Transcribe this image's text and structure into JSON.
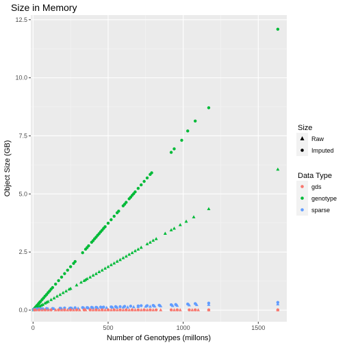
{
  "chart_data": {
    "type": "scatter",
    "title": "Size in Memory",
    "xlabel": "Number of Genotypes (millons)",
    "ylabel": "Object Size (GB)",
    "xlim": [
      -15,
      1690
    ],
    "ylim": [
      -0.5,
      12.7
    ],
    "x_ticks": [
      0,
      500,
      1000,
      1500
    ],
    "x_tick_labels": [
      "0",
      "500",
      "1000",
      "1500"
    ],
    "y_ticks": [
      0,
      2.5,
      5,
      7.5,
      10,
      12.5
    ],
    "y_tick_labels": [
      "0.0",
      "2.5",
      "5.0",
      "7.5",
      "10.0",
      "12.5"
    ],
    "grid": true,
    "legends": [
      {
        "title": "Size",
        "entries": [
          {
            "label": "Raw",
            "shape": "triangle"
          },
          {
            "label": "Imputed",
            "shape": "circle"
          }
        ]
      },
      {
        "title": "Data Type",
        "entries": [
          {
            "label": "gds",
            "color": "#F8766D"
          },
          {
            "label": "genotype",
            "color": "#00BA38"
          },
          {
            "label": "sparse",
            "color": "#619CFF"
          }
        ]
      }
    ],
    "series": [
      {
        "name": "genotype",
        "size": "Imputed",
        "color": "#00BA38",
        "x": [
          2,
          5,
          8,
          12,
          16,
          20,
          25,
          30,
          35,
          40,
          45,
          50,
          60,
          70,
          80,
          90,
          100,
          110,
          120,
          130,
          150,
          170,
          190,
          210,
          230,
          250,
          270,
          280,
          330,
          350,
          360,
          370,
          390,
          400,
          410,
          420,
          430,
          440,
          450,
          460,
          470,
          480,
          500,
          520,
          540,
          560,
          570,
          600,
          610,
          620,
          640,
          650,
          660,
          670,
          680,
          700,
          720,
          740,
          760,
          780,
          790,
          920,
          940,
          990,
          1030,
          1080,
          1170,
          1630
        ],
        "y": [
          0.02,
          0.04,
          0.06,
          0.09,
          0.12,
          0.15,
          0.19,
          0.22,
          0.26,
          0.3,
          0.34,
          0.37,
          0.45,
          0.52,
          0.6,
          0.67,
          0.75,
          0.82,
          0.9,
          0.97,
          1.12,
          1.27,
          1.42,
          1.57,
          1.72,
          1.87,
          2.01,
          2.09,
          2.47,
          2.62,
          2.69,
          2.77,
          2.92,
          2.99,
          3.07,
          3.14,
          3.22,
          3.29,
          3.37,
          3.44,
          3.52,
          3.59,
          3.74,
          3.89,
          4.04,
          4.19,
          4.26,
          4.49,
          4.56,
          4.64,
          4.79,
          4.86,
          4.94,
          5.01,
          5.09,
          5.24,
          5.39,
          5.54,
          5.69,
          5.84,
          5.91,
          6.79,
          6.94,
          7.31,
          7.71,
          8.14,
          8.71,
          12.09
        ]
      },
      {
        "name": "genotype",
        "size": "Raw",
        "color": "#00BA38",
        "x": [
          3,
          8,
          14,
          20,
          27,
          35,
          45,
          55,
          65,
          80,
          90,
          100,
          120,
          140,
          160,
          180,
          200,
          220,
          240,
          250,
          290,
          320,
          340,
          350,
          360,
          380,
          400,
          420,
          440,
          460,
          480,
          500,
          520,
          540,
          560,
          580,
          600,
          620,
          640,
          660,
          680,
          700,
          720,
          760,
          780,
          800,
          820,
          880,
          920,
          940,
          980,
          1020,
          1070,
          1170,
          1630
        ],
        "y": [
          0.01,
          0.03,
          0.05,
          0.08,
          0.1,
          0.13,
          0.17,
          0.21,
          0.24,
          0.3,
          0.34,
          0.37,
          0.45,
          0.52,
          0.6,
          0.67,
          0.75,
          0.82,
          0.9,
          0.93,
          1.08,
          1.2,
          1.27,
          1.31,
          1.35,
          1.42,
          1.5,
          1.57,
          1.65,
          1.72,
          1.8,
          1.87,
          1.95,
          2.02,
          2.1,
          2.17,
          2.25,
          2.32,
          2.4,
          2.47,
          2.55,
          2.62,
          2.7,
          2.85,
          2.92,
          3.0,
          3.07,
          3.3,
          3.45,
          3.52,
          3.67,
          3.82,
          4.01,
          4.36,
          6.06
        ]
      },
      {
        "name": "sparse",
        "size": "Imputed",
        "color": "#619CFF",
        "x": [
          3,
          8,
          15,
          25,
          40,
          60,
          90,
          130,
          180,
          210,
          250,
          280,
          330,
          360,
          390,
          420,
          450,
          470,
          520,
          550,
          580,
          610,
          650,
          700,
          720,
          760,
          800,
          840,
          920,
          950,
          1030,
          1080,
          1170,
          1630
        ],
        "y": [
          0.02,
          0.03,
          0.04,
          0.05,
          0.06,
          0.06,
          0.07,
          0.07,
          0.08,
          0.09,
          0.09,
          0.1,
          0.11,
          0.11,
          0.12,
          0.12,
          0.13,
          0.13,
          0.14,
          0.15,
          0.15,
          0.16,
          0.17,
          0.18,
          0.19,
          0.19,
          0.2,
          0.21,
          0.23,
          0.24,
          0.26,
          0.28,
          0.3,
          0.33
        ]
      },
      {
        "name": "sparse",
        "size": "Raw",
        "color": "#619CFF",
        "x": [
          5,
          12,
          20,
          30,
          50,
          70,
          100,
          140,
          190,
          240,
          260,
          300,
          340,
          370,
          400,
          430,
          460,
          490,
          530,
          560,
          600,
          630,
          670,
          700,
          750,
          780,
          810,
          850,
          930,
          960,
          1040,
          1090,
          1170,
          1630
        ],
        "y": [
          0.02,
          0.03,
          0.04,
          0.04,
          0.05,
          0.05,
          0.06,
          0.06,
          0.07,
          0.08,
          0.08,
          0.08,
          0.09,
          0.09,
          0.1,
          0.1,
          0.11,
          0.11,
          0.12,
          0.12,
          0.13,
          0.13,
          0.14,
          0.15,
          0.16,
          0.16,
          0.17,
          0.18,
          0.19,
          0.2,
          0.22,
          0.23,
          0.24,
          0.26
        ]
      },
      {
        "name": "gds",
        "size": "Imputed",
        "color": "#F8766D",
        "x": [
          10,
          40,
          80,
          120,
          170,
          210,
          250,
          290,
          340,
          380,
          420,
          460,
          500,
          540,
          580,
          620,
          660,
          700,
          740,
          780,
          820,
          920,
          960,
          1040,
          1080,
          1170,
          1630
        ],
        "y": [
          0.01,
          0.01,
          0.01,
          0.01,
          0.01,
          0.01,
          0.01,
          0.01,
          0.01,
          0.01,
          0.01,
          0.01,
          0.01,
          0.01,
          0.01,
          0.01,
          0.01,
          0.01,
          0.01,
          0.01,
          0.01,
          0.01,
          0.01,
          0.01,
          0.01,
          0.01,
          0.01
        ]
      },
      {
        "name": "gds",
        "size": "Raw",
        "color": "#F8766D",
        "x": [
          20,
          60,
          100,
          150,
          190,
          230,
          270,
          310,
          350,
          400,
          440,
          480,
          520,
          560,
          600,
          640,
          680,
          720,
          760,
          800,
          850,
          940,
          980,
          1060,
          1100,
          1170,
          1630
        ],
        "y": [
          0.01,
          0.01,
          0.01,
          0.01,
          0.01,
          0.01,
          0.01,
          0.01,
          0.01,
          0.01,
          0.01,
          0.01,
          0.01,
          0.01,
          0.01,
          0.01,
          0.01,
          0.01,
          0.01,
          0.01,
          0.01,
          0.01,
          0.01,
          0.01,
          0.01,
          0.01,
          0.01
        ]
      }
    ]
  }
}
